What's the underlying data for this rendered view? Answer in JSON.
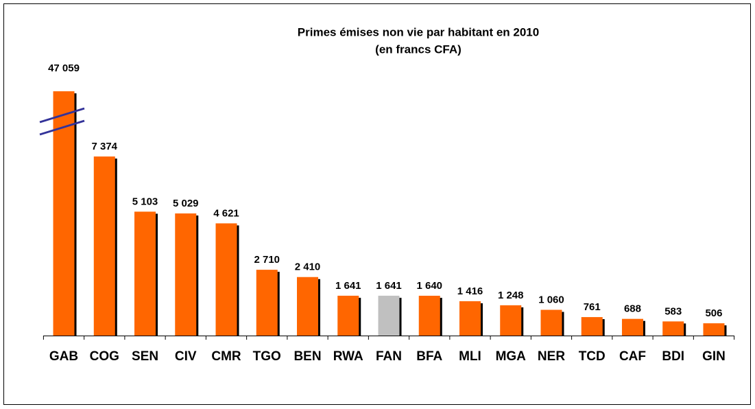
{
  "chart_data": {
    "type": "bar",
    "title": "Primes émises non vie par habitant en 2010",
    "subtitle": "(en francs CFA)",
    "categories": [
      "GAB",
      "COG",
      "SEN",
      "CIV",
      "CMR",
      "TGO",
      "BEN",
      "RWA",
      "FAN",
      "BFA",
      "MLI",
      "MGA",
      "NER",
      "TCD",
      "CAF",
      "BDI",
      "GIN"
    ],
    "values": [
      47059,
      7374,
      5103,
      5029,
      4621,
      2710,
      2410,
      1641,
      1641,
      1640,
      1416,
      1248,
      1060,
      761,
      688,
      583,
      506
    ],
    "value_labels": [
      "47 059",
      "7 374",
      "5 103",
      "5 029",
      "4 621",
      "2 710",
      "2 410",
      "1 641",
      "1 641",
      "1 640",
      "1 416",
      "1 248",
      "1 060",
      "761",
      "688",
      "583",
      "506"
    ],
    "colors": [
      "#ff6600",
      "#ff6600",
      "#ff6600",
      "#ff6600",
      "#ff6600",
      "#ff6600",
      "#ff6600",
      "#ff6600",
      "#c0c0c0",
      "#ff6600",
      "#ff6600",
      "#ff6600",
      "#ff6600",
      "#ff6600",
      "#ff6600",
      "#ff6600",
      "#ff6600"
    ],
    "ylim": [
      0,
      10060
    ]
  }
}
